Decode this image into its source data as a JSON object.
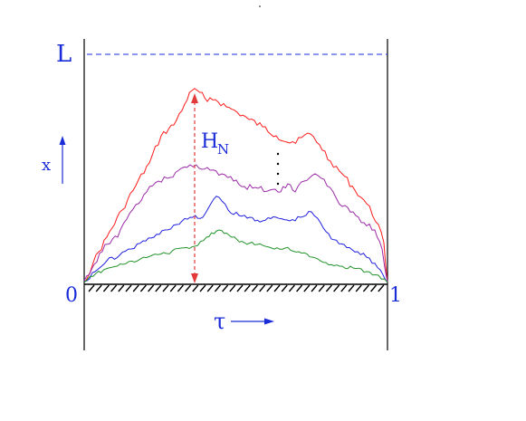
{
  "labels": {
    "top_boundary": "L",
    "left_origin": "0",
    "right_end": "1",
    "vertical_axis": "x",
    "horizontal_axis": "τ",
    "height_symbol": "H",
    "height_subscript": "N",
    "more_paths": "⋮"
  },
  "colors": {
    "text": "#1a2bd8",
    "axis": "#000000",
    "dashed_top": "#1a2bd8",
    "height_arrow": "#e23a3a",
    "paths": [
      "#ff1a1a",
      "#9b2aa8",
      "#1f1fe0",
      "#22932a"
    ]
  },
  "paths_shown": 4
}
